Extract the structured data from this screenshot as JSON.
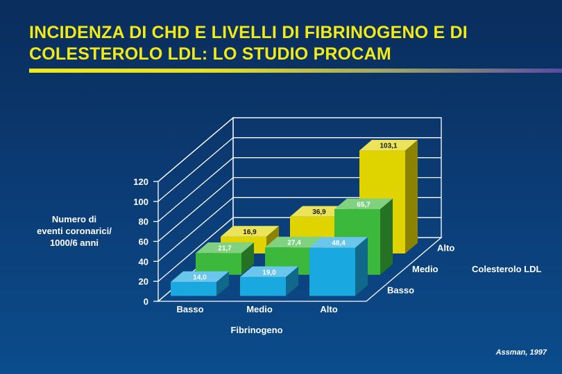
{
  "header": {
    "title_line1": "INCIDENZA DI CHD E LIVELLI DI FIBRINOGENO E DI",
    "title_line2": "COLESTEROLO LDL: LO STUDIO PROCAM"
  },
  "footer": {
    "citation": "Assman, 1997"
  },
  "chart_data": {
    "type": "bar",
    "subtype": "3d-grouped",
    "ylabel": "Numero di eventi coronarici/ 1000/6 anni",
    "ylabel_lines": [
      "Numero di",
      "eventi coronarici/",
      "1000/6 anni"
    ],
    "xlabel": "Fibrinogeno",
    "zlabel": "Colesterolo LDL",
    "categories": [
      "Basso",
      "Medio",
      "Alto"
    ],
    "depth_categories": [
      "Basso",
      "Medio",
      "Alto"
    ],
    "yticks": [
      "0",
      "20",
      "40",
      "60",
      "80",
      "100",
      "120"
    ],
    "ylim": [
      0,
      120
    ],
    "grid": true,
    "series": [
      {
        "name": "Basso",
        "color": "#1aa8e0",
        "values": [
          14.0,
          19.0,
          48.4
        ],
        "labels": [
          "14,0",
          "19,0",
          "48,4"
        ]
      },
      {
        "name": "Medio",
        "color": "#3cb83c",
        "values": [
          21.7,
          27.4,
          65.7
        ],
        "labels": [
          "21,7",
          "27,4",
          "65,7"
        ]
      },
      {
        "name": "Alto",
        "color": "#e0d400",
        "values": [
          16.9,
          36.9,
          103.1
        ],
        "labels": [
          "16,9",
          "36,9",
          "103,1"
        ]
      }
    ]
  }
}
